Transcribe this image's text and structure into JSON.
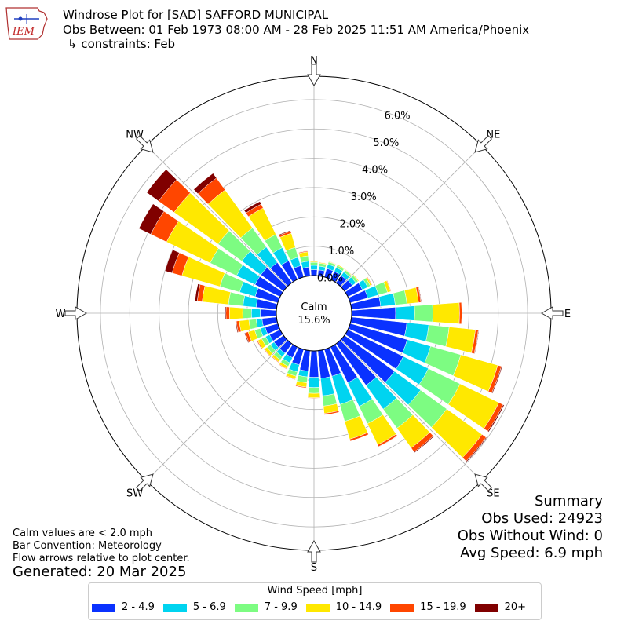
{
  "header": {
    "title": "Windrose Plot for [SAD] SAFFORD MUNICIPAL",
    "obs_between": "Obs Between: 01 Feb 1973 08:00 AM - 28 Feb 2025 11:51 AM America/Phoenix",
    "constraints": "↳ constraints: Feb"
  },
  "logo": {
    "text": "IEM"
  },
  "notes": {
    "calm_def": "Calm values are < 2.0 mph",
    "convention": "Bar Convention: Meteorology",
    "flow": "Flow arrows relative to plot center.",
    "generated": "Generated: 20 Mar 2025"
  },
  "summary": {
    "title": "Summary",
    "obs_used": "Obs Used: 24923",
    "obs_without_wind": "Obs Without Wind: 0",
    "avg_speed": "Avg Speed: 6.9 mph"
  },
  "colors": {
    "2-4.9": "#0a32ff",
    "5-6.9": "#00d4f0",
    "7-9.9": "#7dfc82",
    "10-14.9": "#ffe800",
    "15-19.9": "#ff4600",
    "20+": "#800000"
  },
  "chart_data": {
    "type": "windrose",
    "title": "Windrose Plot for [SAD] SAFFORD MUNICIPAL",
    "calm": {
      "label": "Calm",
      "value": "15.6%"
    },
    "radial_ticks": [
      "0.0%",
      "1.0%",
      "2.0%",
      "3.0%",
      "4.0%",
      "5.0%",
      "6.0%"
    ],
    "radial_max": 6.8,
    "compass_labels": [
      "N",
      "NE",
      "E",
      "SE",
      "S",
      "SW",
      "W",
      "NW"
    ],
    "legend_title": "Wind Speed [mph]",
    "bins": [
      {
        "name": "2 - 4.9",
        "color": "#0a32ff"
      },
      {
        "name": "5 - 6.9",
        "color": "#00d4f0"
      },
      {
        "name": "7 - 9.9",
        "color": "#7dfc82"
      },
      {
        "name": "10 - 14.9",
        "color": "#ffe800"
      },
      {
        "name": "15 - 19.9",
        "color": "#ff4600"
      },
      {
        "name": "20+",
        "color": "#800000"
      }
    ],
    "directions": [
      {
        "dir": 0,
        "cum": [
          0.2,
          0.35,
          0.45,
          0.48,
          0.49,
          0.5
        ]
      },
      {
        "dir": 10,
        "cum": [
          0.2,
          0.33,
          0.43,
          0.46,
          0.47,
          0.47
        ]
      },
      {
        "dir": 20,
        "cum": [
          0.3,
          0.45,
          0.53,
          0.55,
          0.56,
          0.56
        ]
      },
      {
        "dir": 30,
        "cum": [
          0.3,
          0.45,
          0.53,
          0.56,
          0.56,
          0.56
        ]
      },
      {
        "dir": 40,
        "cum": [
          0.3,
          0.45,
          0.53,
          0.55,
          0.56,
          0.56
        ]
      },
      {
        "dir": 50,
        "cum": [
          0.33,
          0.48,
          0.57,
          0.6,
          0.61,
          0.61
        ]
      },
      {
        "dir": 60,
        "cum": [
          0.55,
          0.75,
          0.85,
          0.9,
          0.92,
          0.92
        ]
      },
      {
        "dir": 70,
        "cum": [
          0.62,
          1.0,
          1.32,
          1.43,
          1.45,
          1.45
        ]
      },
      {
        "dir": 80,
        "cum": [
          1.0,
          1.5,
          1.9,
          2.3,
          2.38,
          2.4
        ]
      },
      {
        "dir": 90,
        "cum": [
          1.5,
          2.15,
          2.77,
          3.68,
          3.76,
          3.77
        ]
      },
      {
        "dir": 100,
        "cum": [
          1.9,
          2.65,
          3.35,
          4.25,
          4.35,
          4.37
        ]
      },
      {
        "dir": 110,
        "cum": [
          2.02,
          2.85,
          3.92,
          5.23,
          5.36,
          5.39
        ]
      },
      {
        "dir": 120,
        "cum": [
          2.1,
          3.05,
          4.25,
          5.72,
          5.88,
          5.92
        ]
      },
      {
        "dir": 130,
        "cum": [
          2.1,
          3.2,
          4.3,
          5.78,
          5.95,
          5.98
        ]
      },
      {
        "dir": 140,
        "cum": [
          1.75,
          2.75,
          3.55,
          4.38,
          4.55,
          4.58
        ]
      },
      {
        "dir": 150,
        "cum": [
          1.35,
          2.25,
          2.9,
          3.7,
          3.77,
          3.78
        ]
      },
      {
        "dir": 160,
        "cum": [
          0.95,
          1.95,
          2.55,
          3.18,
          3.25,
          3.25
        ]
      },
      {
        "dir": 170,
        "cum": [
          0.95,
          1.55,
          1.9,
          2.15,
          2.2,
          2.2
        ]
      },
      {
        "dir": 180,
        "cum": [
          0.9,
          1.25,
          1.45,
          1.6,
          1.62,
          1.62
        ]
      },
      {
        "dir": 190,
        "cum": [
          0.7,
          0.9,
          1.1,
          1.25,
          1.28,
          1.28
        ]
      },
      {
        "dir": 200,
        "cum": [
          0.55,
          0.8,
          0.95,
          1.05,
          1.07,
          1.07
        ]
      },
      {
        "dir": 210,
        "cum": [
          0.4,
          0.6,
          0.73,
          0.82,
          0.84,
          0.84
        ]
      },
      {
        "dir": 220,
        "cum": [
          0.4,
          0.55,
          0.68,
          0.77,
          0.79,
          0.79
        ]
      },
      {
        "dir": 230,
        "cum": [
          0.4,
          0.55,
          0.69,
          0.8,
          0.82,
          0.82
        ]
      },
      {
        "dir": 240,
        "cum": [
          0.4,
          0.55,
          0.7,
          0.85,
          0.88,
          0.89
        ]
      },
      {
        "dir": 250,
        "cum": [
          0.45,
          0.62,
          0.82,
          1.05,
          1.15,
          1.18
        ]
      },
      {
        "dir": 260,
        "cum": [
          0.5,
          0.7,
          0.95,
          1.28,
          1.38,
          1.41
        ]
      },
      {
        "dir": 270,
        "cum": [
          0.55,
          0.85,
          1.15,
          1.6,
          1.72,
          1.75
        ]
      },
      {
        "dir": 280,
        "cum": [
          0.7,
          1.15,
          1.65,
          2.55,
          2.72,
          2.8
        ]
      },
      {
        "dir": 290,
        "cum": [
          0.8,
          1.35,
          2.05,
          3.4,
          3.75,
          4.0
        ]
      },
      {
        "dir": 300,
        "cum": [
          0.95,
          1.65,
          2.65,
          4.3,
          4.9,
          5.35
        ]
      },
      {
        "dir": 310,
        "cum": [
          0.95,
          1.75,
          2.75,
          4.6,
          5.25,
          5.75
        ]
      },
      {
        "dir": 320,
        "cum": [
          0.85,
          1.5,
          2.3,
          3.9,
          4.4,
          4.6
        ]
      },
      {
        "dir": 330,
        "cum": [
          0.7,
          1.2,
          1.7,
          2.7,
          2.85,
          2.95
        ]
      },
      {
        "dir": 340,
        "cum": [
          0.4,
          0.7,
          1.05,
          1.55,
          1.62,
          1.65
        ]
      },
      {
        "dir": 350,
        "cum": [
          0.3,
          0.5,
          0.68,
          0.82,
          0.85,
          0.86
        ]
      }
    ]
  }
}
